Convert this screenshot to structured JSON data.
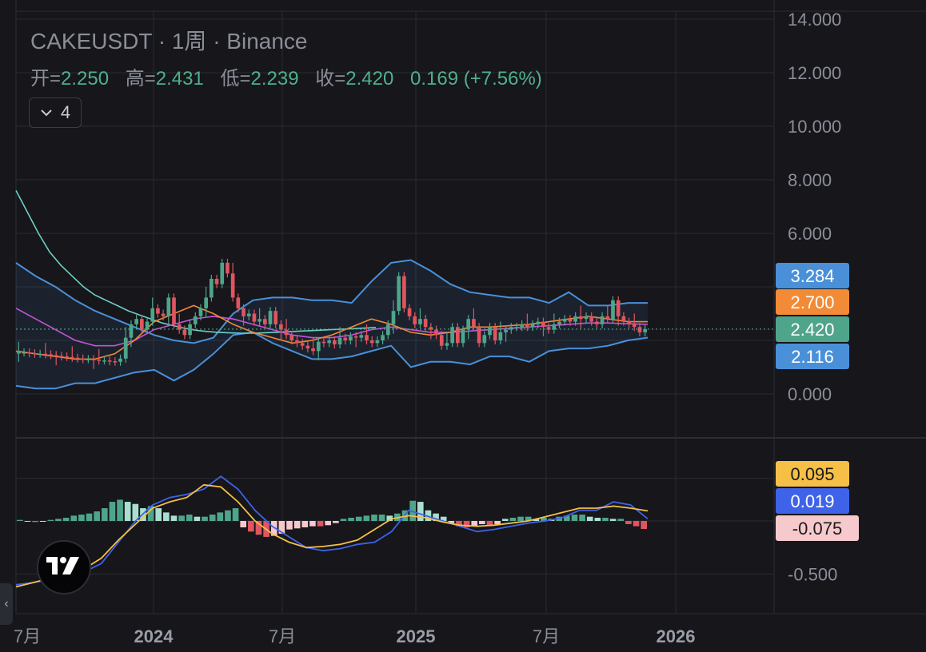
{
  "header": {
    "title": "CAKEUSDT · 1周 · Binance",
    "ohlc": {
      "open_label": "开=",
      "open": "2.250",
      "high_label": "高=",
      "high": "2.431",
      "low_label": "低=",
      "low": "2.239",
      "close_label": "收=",
      "close": "2.420",
      "change": "0.169 (+7.56%)"
    },
    "indicator_count": "4"
  },
  "colors": {
    "background": "#16161b",
    "up": "#4fa58a",
    "down": "#e0555f",
    "bollinger": "#4a90d9",
    "ma_long": "#6ecfc4",
    "ma_orange": "#f28a36",
    "ma_magenta": "#c455d6",
    "macd_line": "#3f63e8",
    "signal_line": "#f5c045"
  },
  "chart_data": [
    {
      "type": "line",
      "name": "price_pane",
      "y_axis_ticks": [
        "14.000",
        "12.000",
        "10.000",
        "8.000",
        "6.000",
        "0.000"
      ],
      "ylim": [
        0,
        14
      ],
      "x_axis_ticks": [
        "7月",
        "2024",
        "7月",
        "2025",
        "7月",
        "2026"
      ],
      "x_range": [
        "2023-06-25",
        "2026-03-01"
      ],
      "price_labels": [
        {
          "value": "3.284",
          "color": "#4a90d9"
        },
        {
          "value": "2.700",
          "color": "#f28a36"
        },
        {
          "value": "2.420",
          "color": "#4fa58a"
        },
        {
          "value": "2.116",
          "color": "#4a90d9"
        }
      ],
      "last_close": 2.42,
      "candles_weekly_close": [
        1.55,
        1.55,
        1.52,
        1.5,
        1.5,
        1.48,
        1.45,
        1.42,
        1.4,
        1.38,
        1.35,
        1.32,
        1.3,
        1.3,
        1.28,
        1.25,
        1.25,
        1.22,
        1.2,
        1.32,
        2.1,
        2.6,
        2.8,
        2.4,
        2.7,
        3.2,
        3.0,
        2.9,
        3.6,
        2.6,
        2.4,
        2.2,
        2.6,
        2.9,
        3.2,
        3.6,
        4.3,
        4.1,
        4.9,
        4.5,
        3.6,
        3.2,
        2.9,
        3.0,
        2.7,
        2.8,
        2.6,
        3.1,
        2.6,
        2.4,
        2.2,
        2.0,
        1.9,
        1.8,
        1.7,
        1.6,
        1.95,
        1.9,
        2.0,
        1.85,
        2.1,
        2.0,
        2.15,
        2.1,
        2.2,
        2.0,
        1.9,
        2.0,
        2.2,
        2.6,
        3.1,
        4.4,
        3.2,
        2.9,
        2.6,
        2.8,
        2.5,
        2.4,
        2.2,
        1.8,
        1.9,
        2.5,
        1.9,
        2.4,
        2.8,
        2.5,
        1.9,
        2.2,
        2.5,
        2.0,
        2.3,
        2.4,
        2.5,
        2.5,
        2.6,
        2.5,
        2.6,
        2.7,
        2.5,
        2.4,
        2.6,
        2.7,
        2.8,
        2.7,
        2.9,
        2.8,
        2.9,
        2.7,
        2.6,
        2.9,
        2.8,
        3.5,
        2.9,
        2.7,
        2.6,
        2.5,
        2.3,
        2.42
      ],
      "bollinger_upper": [
        4.9,
        4.4,
        4.0,
        3.5,
        3.1,
        2.8,
        2.5,
        2.2,
        2.0,
        1.9,
        2.1,
        3.0,
        3.5,
        3.6,
        3.6,
        3.5,
        3.5,
        3.4,
        4.2,
        4.9,
        5.0,
        4.6,
        4.1,
        3.8,
        3.7,
        3.6,
        3.6,
        3.4,
        3.8,
        3.3,
        3.3,
        3.4,
        3.4
      ],
      "bollinger_lower": [
        0.3,
        0.2,
        0.2,
        0.4,
        0.4,
        0.6,
        0.8,
        0.9,
        0.5,
        0.9,
        1.5,
        2.2,
        2.3,
        1.9,
        1.6,
        1.3,
        1.3,
        1.4,
        1.6,
        1.8,
        1.0,
        1.2,
        1.2,
        1.1,
        1.4,
        1.4,
        1.2,
        1.6,
        1.7,
        1.7,
        1.8,
        2.0,
        2.1
      ],
      "ma_long": [
        7.6,
        6.8,
        6.0,
        5.3,
        4.8,
        4.4,
        4.0,
        3.7,
        3.5,
        3.3,
        3.1,
        2.95,
        2.8,
        2.65,
        2.55,
        2.45,
        2.38,
        2.33,
        2.3,
        2.28,
        2.27,
        2.27,
        2.28,
        2.3,
        2.32,
        2.34,
        2.36,
        2.38,
        2.4,
        2.42,
        2.44,
        2.46,
        2.48
      ],
      "ma_orange": [
        1.6,
        1.5,
        1.4,
        1.3,
        1.3,
        1.5,
        2.0,
        2.7,
        3.0,
        3.3,
        3.0,
        2.6,
        2.3,
        2.1,
        1.9,
        2.0,
        2.2,
        2.5,
        2.8,
        2.6,
        2.3,
        2.2,
        2.3,
        2.5,
        2.5,
        2.55,
        2.6,
        2.7,
        2.8,
        2.9,
        2.8,
        2.7,
        2.7
      ],
      "ma_magenta": [
        3.2,
        2.8,
        2.4,
        2.0,
        1.8,
        1.8,
        2.0,
        2.4,
        2.6,
        2.8,
        2.9,
        2.8,
        2.6,
        2.4,
        2.2,
        2.1,
        2.1,
        2.2,
        2.4,
        2.5,
        2.4,
        2.3,
        2.3,
        2.35,
        2.4,
        2.45,
        2.5,
        2.55,
        2.6,
        2.65,
        2.65,
        2.62,
        2.6
      ]
    },
    {
      "type": "bar",
      "name": "macd_pane",
      "y_axis_ticks": [
        "-0.500"
      ],
      "ylim": [
        -0.65,
        0.45
      ],
      "macd_labels": [
        {
          "value": "0.095",
          "color": "#f5c045",
          "text_color": "#1a1a1a"
        },
        {
          "value": "0.019",
          "color": "#3f63e8",
          "text_color": "#ffffff"
        },
        {
          "value": "-0.075",
          "color": "#f6c9cd",
          "text_color": "#1a1a1a"
        }
      ],
      "macd_line": [
        -0.6,
        -0.58,
        -0.55,
        -0.52,
        -0.48,
        -0.4,
        -0.2,
        0.0,
        0.15,
        0.22,
        0.25,
        0.3,
        0.42,
        0.3,
        0.1,
        -0.05,
        -0.15,
        -0.25,
        -0.28,
        -0.26,
        -0.22,
        -0.2,
        -0.1,
        0.1,
        0.05,
        0.0,
        -0.05,
        -0.1,
        -0.08,
        -0.05,
        -0.02,
        0.0,
        0.03,
        0.1,
        0.1,
        0.18,
        0.15,
        0.02
      ],
      "signal_line": [
        -0.62,
        -0.58,
        -0.54,
        -0.5,
        -0.45,
        -0.35,
        -0.18,
        -0.03,
        0.12,
        0.18,
        0.22,
        0.34,
        0.32,
        0.18,
        0.0,
        -0.12,
        -0.2,
        -0.25,
        -0.24,
        -0.22,
        -0.18,
        -0.08,
        0.02,
        0.05,
        0.03,
        -0.01,
        -0.04,
        -0.05,
        -0.04,
        -0.02,
        0.0,
        0.04,
        0.08,
        0.12,
        0.12,
        0.14,
        0.12,
        0.095
      ],
      "histogram": [
        0.01,
        0.0,
        -0.01,
        -0.005,
        0.01,
        0.02,
        0.03,
        0.05,
        0.06,
        0.07,
        0.09,
        0.12,
        0.18,
        0.2,
        0.18,
        0.16,
        0.12,
        0.14,
        0.12,
        0.08,
        0.05,
        0.05,
        0.06,
        0.04,
        0.04,
        0.06,
        0.08,
        0.1,
        0.12,
        -0.06,
        -0.1,
        -0.13,
        -0.15,
        -0.14,
        -0.12,
        -0.08,
        -0.07,
        -0.06,
        -0.05,
        -0.05,
        -0.04,
        -0.02,
        0.02,
        0.03,
        0.04,
        0.05,
        0.06,
        0.06,
        0.05,
        0.07,
        0.1,
        0.19,
        0.18,
        0.1,
        0.07,
        0.04,
        -0.02,
        -0.05,
        -0.06,
        -0.05,
        -0.03,
        -0.04,
        -0.03,
        0.02,
        0.03,
        0.04,
        0.04,
        0.02,
        0.03,
        0.02,
        0.04,
        0.05,
        0.06,
        0.06,
        0.04,
        0.03,
        0.03,
        0.02,
        0.02,
        -0.03,
        -0.05,
        -0.075
      ]
    }
  ]
}
